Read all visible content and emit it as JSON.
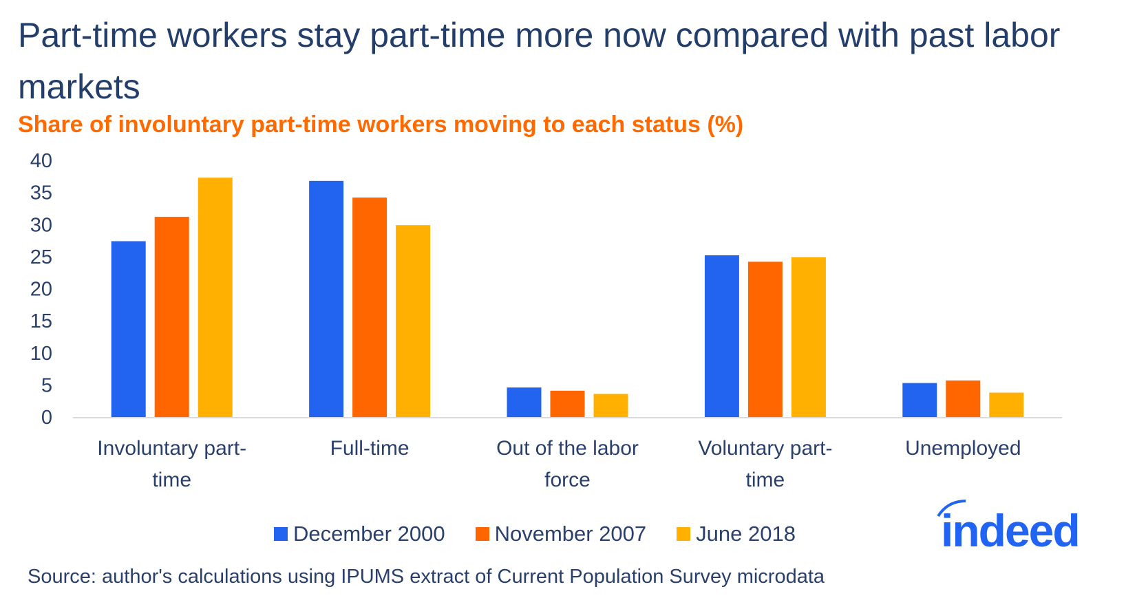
{
  "title": "Part-time workers stay part-time more now compared with past labor markets",
  "source": "Source: author's calculations using IPUMS extract of Current Population Survey microdata",
  "logo_text": "indeed",
  "chart_data": {
    "type": "bar",
    "title": "Part-time workers stay part-time more now compared with past labor markets",
    "subtitle": "Share of involuntary part-time workers moving to each status (%)",
    "categories": [
      [
        "Involuntary part-",
        "time"
      ],
      [
        "Full-time"
      ],
      [
        "Out of the labor",
        "force"
      ],
      [
        "Voluntary part-",
        "time"
      ],
      [
        "Unemployed"
      ]
    ],
    "series": [
      {
        "name": "December 2000",
        "color": "#2264f0",
        "values": [
          27.4,
          36.8,
          4.6,
          25.2,
          5.3
        ]
      },
      {
        "name": "November 2007",
        "color": "#ff6600",
        "values": [
          31.2,
          34.2,
          4.1,
          24.2,
          5.7
        ]
      },
      {
        "name": "June 2018",
        "color": "#ffb000",
        "values": [
          37.3,
          29.9,
          3.6,
          24.9,
          3.8
        ]
      }
    ],
    "yticks": [
      "0",
      "5",
      "10",
      "15",
      "20",
      "25",
      "30",
      "35",
      "40"
    ],
    "ylim": [
      0,
      40
    ],
    "grid": false,
    "legend": "bottom"
  }
}
